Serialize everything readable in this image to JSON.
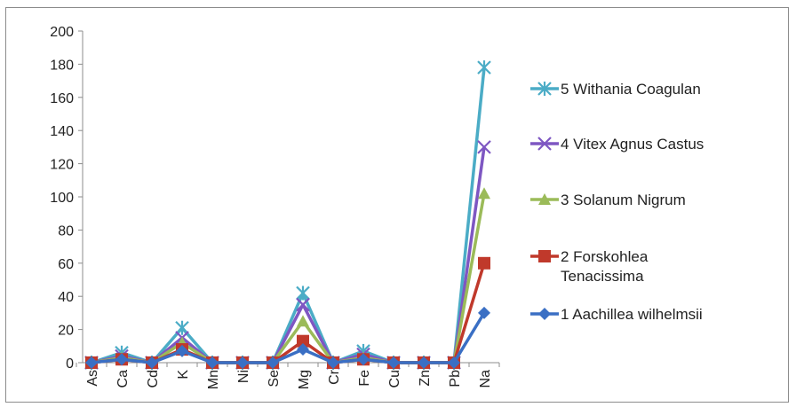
{
  "chart_data": {
    "type": "line",
    "title": "",
    "xlabel": "",
    "ylabel": "",
    "ylim": [
      0,
      200
    ],
    "yticks": [
      0,
      20,
      40,
      60,
      80,
      100,
      120,
      140,
      160,
      180,
      200
    ],
    "categories": [
      "As",
      "Ca",
      "Cd",
      "K",
      "Mn",
      "Ni",
      "Se",
      "Mg",
      "Cr",
      "Fe",
      "Cu",
      "Zn",
      "Pb",
      "Na"
    ],
    "grid": false,
    "legend_position": "right",
    "stacked": true,
    "series": [
      {
        "name": "1 Aachillea wilhelmsii",
        "color": "#3a6fc4",
        "marker": "diamond",
        "values": [
          0,
          2,
          0,
          7,
          0,
          0,
          0,
          8,
          0,
          2,
          0,
          0,
          0,
          30
        ]
      },
      {
        "name": "2 Forskohlea Tenacissima",
        "color": "#c0392b",
        "marker": "square",
        "values": [
          0,
          2,
          0,
          8,
          0,
          0,
          0,
          13,
          0,
          2,
          0,
          0,
          0,
          60
        ]
      },
      {
        "name": "3 Solanum Nigrum",
        "color": "#9bbb59",
        "marker": "triangle",
        "values": [
          0,
          3,
          0,
          12,
          0,
          0,
          0,
          25,
          0,
          3,
          0,
          0,
          0,
          102
        ]
      },
      {
        "name": "4 Vitex Agnus Castus",
        "color": "#7e57c2",
        "marker": "x",
        "values": [
          0,
          4,
          0,
          15,
          0,
          0,
          0,
          35,
          0,
          5,
          0,
          0,
          0,
          130
        ]
      },
      {
        "name": "5 Withania Coagulan",
        "color": "#4bacc6",
        "marker": "asterisk",
        "values": [
          0,
          6,
          0,
          21,
          0,
          0,
          0,
          42,
          0,
          7,
          0,
          0,
          0,
          178
        ]
      }
    ]
  }
}
